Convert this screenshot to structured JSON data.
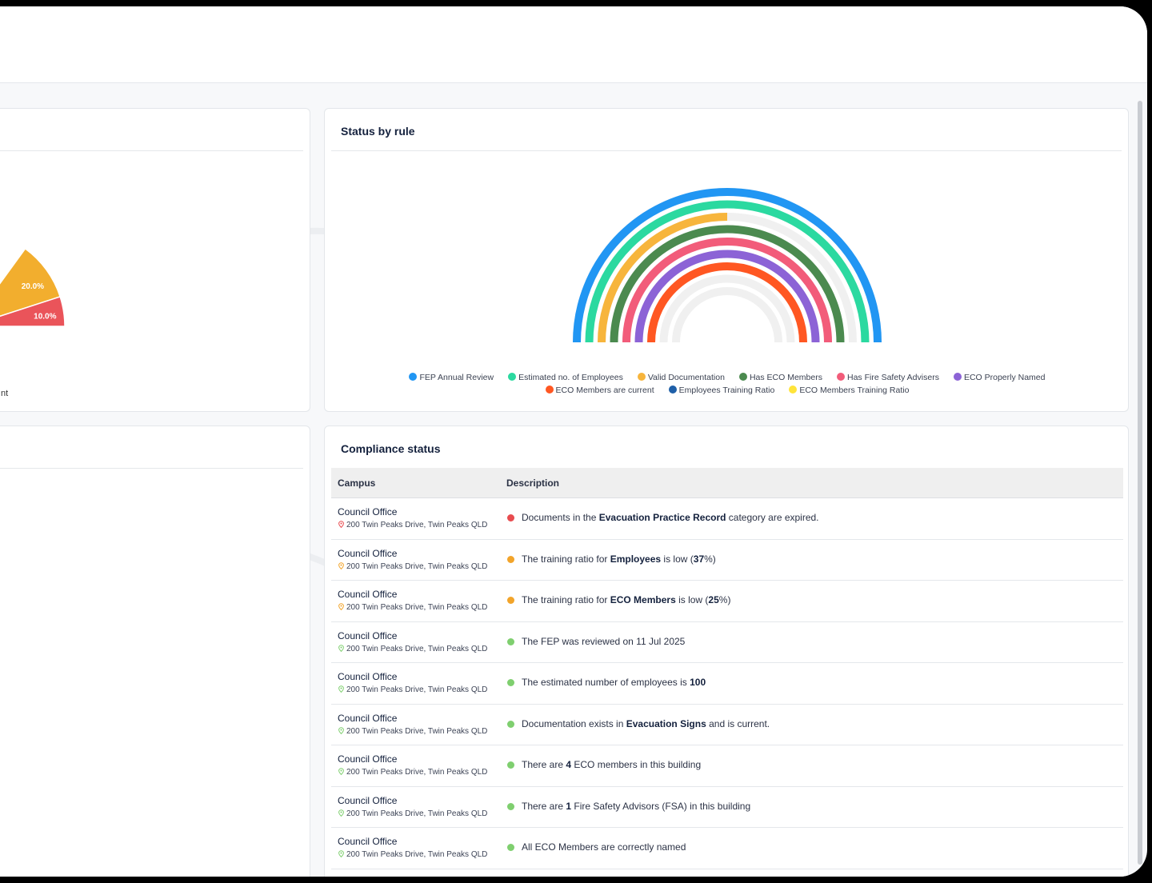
{
  "colors": {
    "status_red": "#e84b4f",
    "status_orange": "#f2a42a",
    "status_green": "#7fcf6f"
  },
  "left_chart": {
    "segments": [
      {
        "label": "20.0%",
        "value": 20.0,
        "color": "#f2ae2e"
      },
      {
        "label": "10.0%",
        "value": 10.0,
        "color": "#ea545a"
      }
    ],
    "legend_fragment": "nt"
  },
  "status_by_rule": {
    "title": "Status by rule",
    "chart_data": {
      "type": "radial-bar",
      "series": [
        {
          "name": "FEP Annual Review",
          "value": 100,
          "color": "#2196f3"
        },
        {
          "name": "Estimated no. of Employees",
          "value": 100,
          "color": "#2bd9a0"
        },
        {
          "name": "Valid Documentation",
          "value": 50,
          "color": "#f7b53c"
        },
        {
          "name": "Has ECO Members",
          "value": 100,
          "color": "#4b8a4f"
        },
        {
          "name": "Has Fire Safety Advisers",
          "value": 100,
          "color": "#f25c7a"
        },
        {
          "name": "ECO Properly Named",
          "value": 100,
          "color": "#8c63d6"
        },
        {
          "name": "ECO Members are current",
          "value": 100,
          "color": "#ff5722"
        },
        {
          "name": "Employees Training Ratio",
          "value": 0,
          "color": "#1e5fa8"
        },
        {
          "name": "ECO Members Training Ratio",
          "value": 0,
          "color": "#ffe43a"
        }
      ],
      "legend_placement": "bottom"
    }
  },
  "compliance": {
    "title": "Compliance status",
    "columns": [
      "Campus",
      "Description"
    ],
    "rows": [
      {
        "campus": "Council Office",
        "address": "200 Twin Peaks Drive, Twin Peaks QLD",
        "status": "red",
        "pre": "Documents in the ",
        "bold": "Evacuation Practice Record",
        "post": " category are expired.",
        "bold2": "",
        "post2": ""
      },
      {
        "campus": "Council Office",
        "address": "200 Twin Peaks Drive, Twin Peaks QLD",
        "status": "orange",
        "pre": "The training ratio for ",
        "bold": "Employees",
        "post": " is low (",
        "bold2": "37",
        "post2": "%)"
      },
      {
        "campus": "Council Office",
        "address": "200 Twin Peaks Drive, Twin Peaks QLD",
        "status": "orange",
        "pre": "The training ratio for ",
        "bold": "ECO Members",
        "post": " is low (",
        "bold2": "25",
        "post2": "%)"
      },
      {
        "campus": "Council Office",
        "address": "200 Twin Peaks Drive, Twin Peaks QLD",
        "status": "green",
        "pre": "The FEP was reviewed on 11 Jul 2025",
        "bold": "",
        "post": "",
        "bold2": "",
        "post2": ""
      },
      {
        "campus": "Council Office",
        "address": "200 Twin Peaks Drive, Twin Peaks QLD",
        "status": "green",
        "pre": "The estimated number of employees is ",
        "bold": "100",
        "post": "",
        "bold2": "",
        "post2": ""
      },
      {
        "campus": "Council Office",
        "address": "200 Twin Peaks Drive, Twin Peaks QLD",
        "status": "green",
        "pre": "Documentation exists in ",
        "bold": "Evacuation Signs",
        "post": " and is current.",
        "bold2": "",
        "post2": ""
      },
      {
        "campus": "Council Office",
        "address": "200 Twin Peaks Drive, Twin Peaks QLD",
        "status": "green",
        "pre": "There are ",
        "bold": "4",
        "post": " ECO members in this building",
        "bold2": "",
        "post2": ""
      },
      {
        "campus": "Council Office",
        "address": "200 Twin Peaks Drive, Twin Peaks QLD",
        "status": "green",
        "pre": "There are ",
        "bold": "1",
        "post": " Fire Safety Advisors (FSA) in this building",
        "bold2": "",
        "post2": ""
      },
      {
        "campus": "Council Office",
        "address": "200 Twin Peaks Drive, Twin Peaks QLD",
        "status": "green",
        "pre": "All ECO Members are correctly named",
        "bold": "",
        "post": "",
        "bold2": "",
        "post2": ""
      }
    ]
  }
}
